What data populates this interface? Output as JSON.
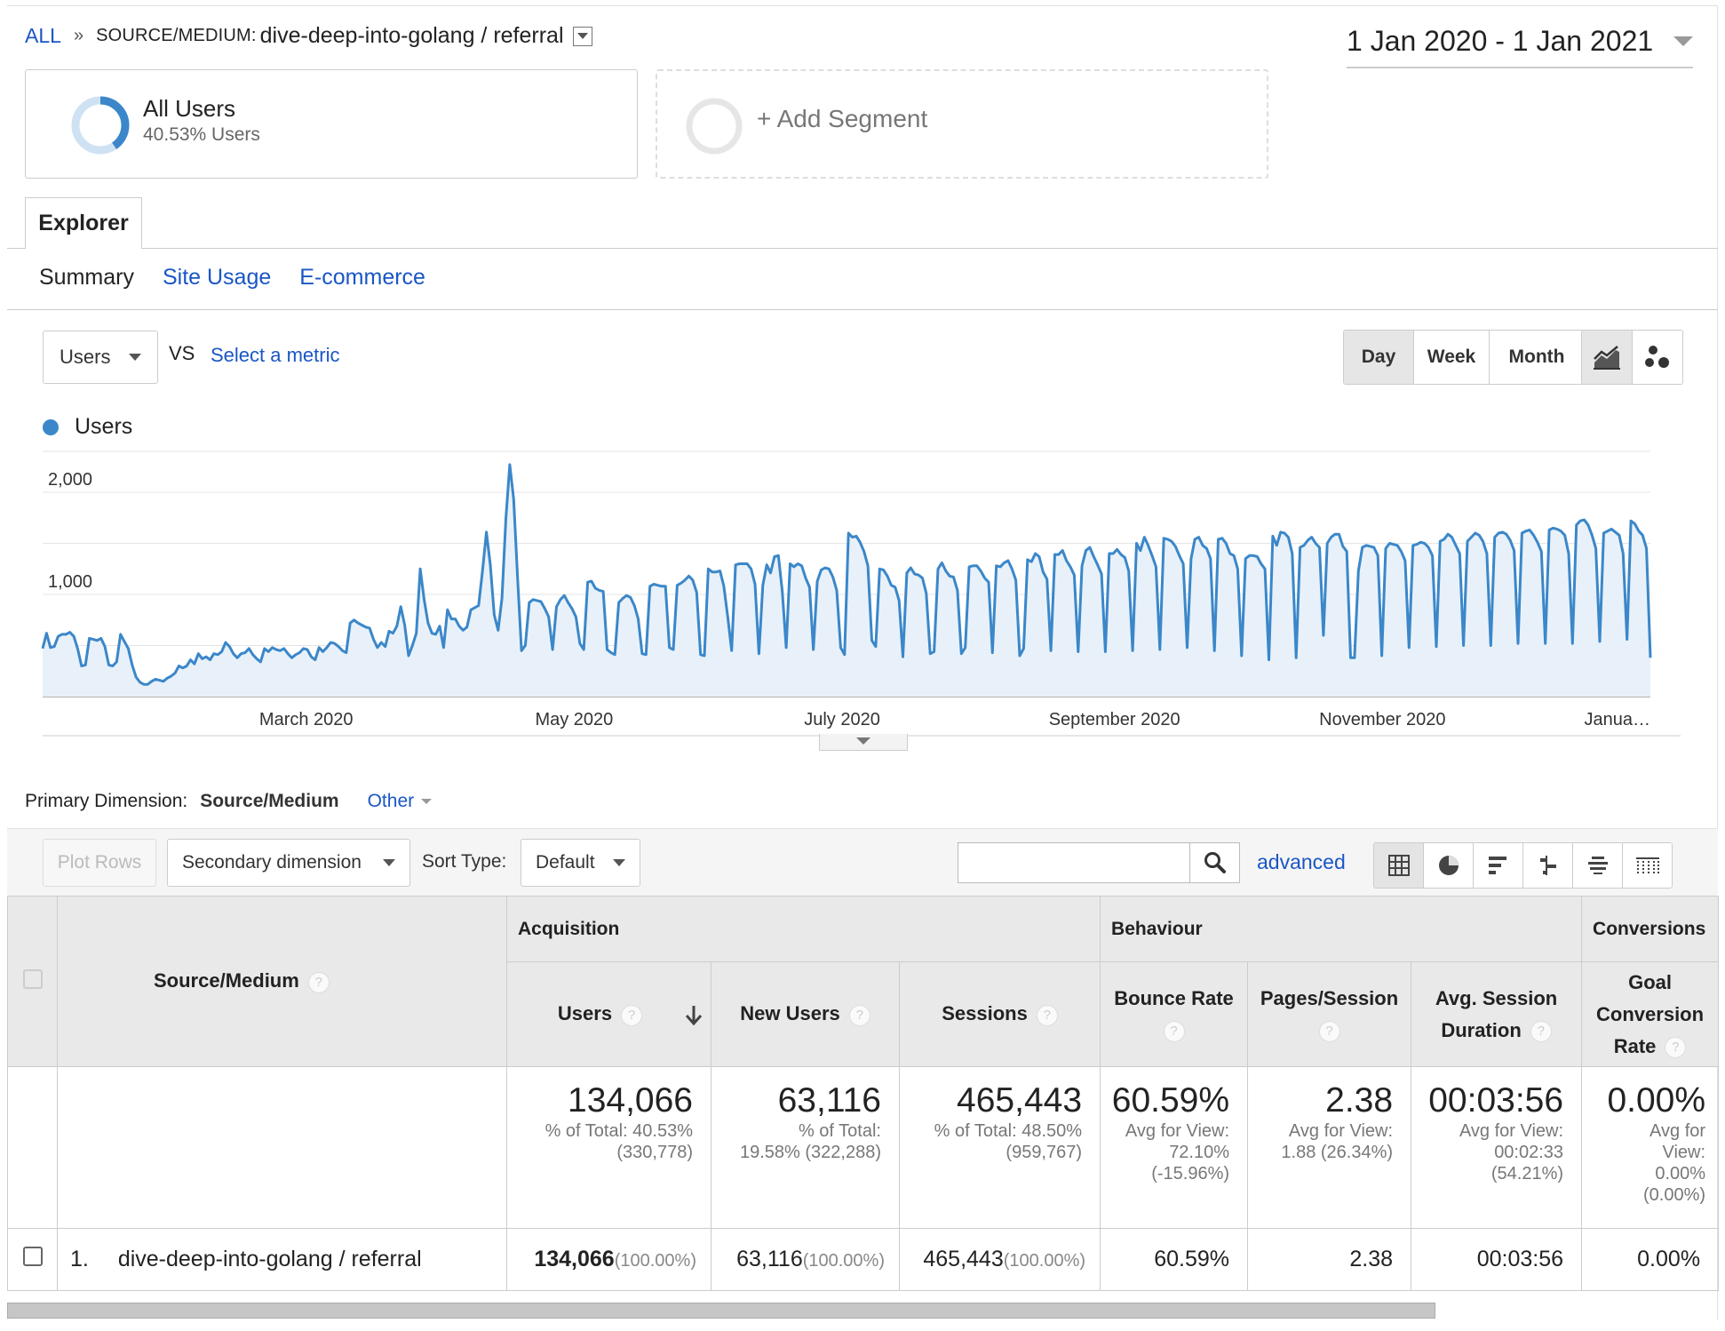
{
  "breadcrumb": {
    "all": "ALL",
    "separator": "»",
    "label": "SOURCE/MEDIUM:",
    "value": "dive-deep-into-golang / referral"
  },
  "date_range": "1 Jan 2020 - 1 Jan 2021",
  "segments": {
    "primary": {
      "title": "All Users",
      "subtitle": "40.53% Users",
      "share": 0.4053
    },
    "add_label": "+ Add Segment"
  },
  "explorer_tab": "Explorer",
  "subtabs": [
    "Summary",
    "Site Usage",
    "E-commerce"
  ],
  "chart_controls": {
    "metric": "Users",
    "vs": "VS",
    "select_metric": "Select a metric",
    "granularity": [
      "Day",
      "Week",
      "Month"
    ],
    "active_granularity": "Day"
  },
  "colors": {
    "series": "#3b87c9",
    "area": "#e8f1f9",
    "link": "#1a56c4"
  },
  "chart_data": {
    "type": "area",
    "title": "",
    "series": [
      {
        "name": "Users"
      }
    ],
    "x_range": [
      "2020-01-01",
      "2021-01-01"
    ],
    "ylim": [
      0,
      2000
    ],
    "y_ticks": [
      "2,000",
      "1,000"
    ],
    "x_tick_labels": [
      "March 2020",
      "May 2020",
      "July 2020",
      "September 2020",
      "November 2020",
      "Janua…"
    ],
    "values": [
      470,
      620,
      480,
      490,
      590,
      610,
      610,
      630,
      590,
      470,
      300,
      310,
      570,
      560,
      550,
      570,
      490,
      310,
      300,
      340,
      610,
      540,
      470,
      310,
      190,
      140,
      120,
      120,
      150,
      170,
      160,
      150,
      180,
      200,
      230,
      300,
      280,
      300,
      360,
      320,
      420,
      370,
      390,
      360,
      420,
      410,
      440,
      530,
      490,
      420,
      380,
      420,
      430,
      470,
      410,
      370,
      340,
      470,
      440,
      480,
      460,
      450,
      470,
      420,
      380,
      410,
      430,
      470,
      460,
      390,
      360,
      480,
      440,
      480,
      530,
      520,
      490,
      450,
      430,
      720,
      750,
      720,
      700,
      680,
      670,
      560,
      480,
      530,
      490,
      640,
      620,
      690,
      880,
      700,
      400,
      500,
      620,
      1250,
      950,
      720,
      620,
      610,
      690,
      480,
      850,
      760,
      760,
      690,
      650,
      680,
      850,
      870,
      890,
      1230,
      1610,
      1290,
      800,
      650,
      960,
      1740,
      2270,
      1930,
      1160,
      450,
      500,
      920,
      950,
      940,
      930,
      860,
      780,
      460,
      880,
      950,
      990,
      920,
      860,
      780,
      520,
      460,
      1120,
      1130,
      1060,
      1040,
      1030,
      460,
      430,
      410,
      920,
      960,
      990,
      970,
      890,
      760,
      420,
      410,
      1080,
      1100,
      1090,
      1080,
      1080,
      480,
      460,
      1090,
      1110,
      1140,
      1180,
      1140,
      1020,
      410,
      400,
      1250,
      1220,
      1220,
      1230,
      1080,
      780,
      450,
      1290,
      1300,
      1300,
      1300,
      1250,
      1100,
      420,
      1090,
      1290,
      1210,
      1370,
      1380,
      1030,
      480,
      1300,
      1270,
      1300,
      1280,
      1160,
      1070,
      460,
      1130,
      1240,
      1260,
      1250,
      1170,
      1040,
      480,
      410,
      1600,
      1560,
      1570,
      1510,
      1420,
      1280,
      550,
      490,
      1250,
      1240,
      1180,
      1090,
      1070,
      940,
      390,
      1210,
      1260,
      1200,
      1190,
      1160,
      1010,
      420,
      440,
      1250,
      1310,
      1230,
      1180,
      1170,
      1040,
      420,
      480,
      1270,
      1280,
      1280,
      1230,
      1160,
      1120,
      430,
      1280,
      1270,
      1310,
      1330,
      1250,
      1140,
      400,
      470,
      1340,
      1320,
      1400,
      1370,
      1220,
      1150,
      450,
      1390,
      1390,
      1430,
      1330,
      1270,
      1190,
      440,
      1280,
      1430,
      1460,
      1370,
      1290,
      1200,
      440,
      1400,
      1400,
      1440,
      1390,
      1360,
      1230,
      450,
      1500,
      1430,
      1560,
      1480,
      1380,
      1270,
      460,
      1550,
      1540,
      1520,
      1470,
      1380,
      1300,
      480,
      1350,
      1540,
      1560,
      1480,
      1450,
      1350,
      450,
      1540,
      1550,
      1500,
      1400,
      1380,
      1250,
      400,
      1350,
      1380,
      1380,
      1370,
      1300,
      1250,
      360,
      1570,
      1480,
      1610,
      1600,
      1560,
      1400,
      380,
      1460,
      1480,
      1530,
      1560,
      1500,
      1460,
      600,
      1500,
      1560,
      1590,
      1590,
      1470,
      1420,
      380,
      380,
      1230,
      1460,
      1480,
      1470,
      1460,
      1380,
      400,
      1450,
      1500,
      1490,
      1480,
      1420,
      1330,
      480,
      1480,
      1490,
      1510,
      1500,
      1460,
      1380,
      490,
      1520,
      1540,
      1590,
      1560,
      1480,
      1400,
      500,
      1520,
      1560,
      1600,
      1580,
      1520,
      1400,
      500,
      1560,
      1600,
      1610,
      1590,
      1530,
      1430,
      520,
      1600,
      1620,
      1630,
      1580,
      1510,
      1420,
      520,
      1630,
      1650,
      1640,
      1620,
      1580,
      1400,
      520,
      1680,
      1720,
      1730,
      1680,
      1580,
      1450,
      540,
      1600,
      1620,
      1640,
      1610,
      1580,
      1400,
      560,
      1720,
      1690,
      1620,
      1580,
      1450,
      380
    ]
  },
  "primary_dimension": {
    "label": "Primary Dimension:",
    "value": "Source/Medium",
    "other": "Other"
  },
  "table_toolbar": {
    "plot_rows": "Plot Rows",
    "secondary_dimension": "Secondary dimension",
    "sort_type_label": "Sort Type:",
    "sort_type_value": "Default",
    "search_value": "",
    "advanced": "advanced"
  },
  "table": {
    "dimension_header": "Source/Medium",
    "groups": [
      "Acquisition",
      "Behaviour",
      "Conversions"
    ],
    "columns": {
      "users": "Users",
      "new_users": "New Users",
      "sessions": "Sessions",
      "bounce_rate": "Bounce Rate",
      "pages_session": "Pages/Session",
      "avg_duration_1": "Avg. Session",
      "avg_duration_2": "Duration",
      "goal_1": "Goal",
      "goal_2": "Conversion",
      "goal_3": "Rate"
    },
    "totals": {
      "users": {
        "value": "134,066",
        "l1": "% of Total: 40.53%",
        "l2": "(330,778)"
      },
      "new_users": {
        "value": "63,116",
        "l1": "% of Total:",
        "l2": "19.58% (322,288)"
      },
      "sessions": {
        "value": "465,443",
        "l1": "% of Total: 48.50%",
        "l2": "(959,767)"
      },
      "bounce_rate": {
        "value": "60.59%",
        "l1": "Avg for View:",
        "l2": "72.10%",
        "l3": "(-15.96%)"
      },
      "pages_session": {
        "value": "2.38",
        "l1": "Avg for View:",
        "l2": "1.88 (26.34%)"
      },
      "avg_duration": {
        "value": "00:03:56",
        "l1": "Avg for View:",
        "l2": "00:02:33",
        "l3": "(54.21%)"
      },
      "goal_rate": {
        "value": "0.00%",
        "l1": "Avg for",
        "l2": "View:",
        "l3": "0.00%",
        "l4": "(0.00%)"
      }
    },
    "rows": [
      {
        "index": "1.",
        "dimension": "dive-deep-into-golang / referral",
        "users": "134,066",
        "users_pct": "(100.00%)",
        "new_users": "63,116",
        "new_users_pct": "(100.00%)",
        "sessions": "465,443",
        "sessions_pct": "(100.00%)",
        "bounce_rate": "60.59%",
        "pages_session": "2.38",
        "avg_duration": "00:03:56",
        "goal_rate": "0.00%"
      }
    ]
  }
}
